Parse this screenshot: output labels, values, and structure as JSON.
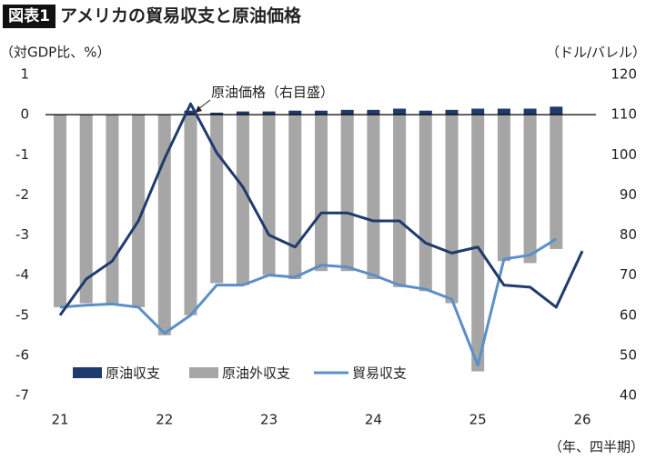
{
  "chart_data": {
    "type": "bar_line",
    "badge": "図表1",
    "title": "アメリカの貿易収支と原油価格",
    "y_label": "（対GDP比、%）",
    "y2_label": "（ドル/バレル）",
    "x_label": "（年、四半期）",
    "annotation": "原油価格（右目盛）",
    "categories": [
      "21",
      null,
      null,
      null,
      "22",
      null,
      null,
      null,
      "23",
      null,
      null,
      null,
      "24",
      null,
      null,
      null,
      "25",
      null,
      null,
      null,
      "26"
    ],
    "ylim": [
      -7,
      1
    ],
    "yticks": [
      1,
      0,
      -1,
      -2,
      -3,
      -4,
      -5,
      -6,
      -7
    ],
    "y2lim": [
      40,
      120
    ],
    "y2ticks": [
      120,
      110,
      100,
      90,
      80,
      70,
      60,
      50,
      40
    ],
    "series": [
      {
        "name": "原油収支",
        "kind": "bar",
        "color": "#1f3b6e",
        "values": [
          -0.02,
          0,
          -0.05,
          0,
          0,
          0.1,
          0.05,
          0.08,
          0.08,
          0.1,
          0.1,
          0.12,
          0.12,
          0.15,
          0.1,
          0.12,
          0.15,
          0.15,
          0.15,
          0.2,
          null
        ]
      },
      {
        "name": "原油外収支",
        "kind": "bar",
        "color": "#a6a6a6",
        "values": [
          -4.8,
          -4.7,
          -4.7,
          -4.8,
          -5.5,
          -5.0,
          -4.2,
          -4.25,
          -4.0,
          -4.1,
          -3.9,
          -3.9,
          -4.1,
          -4.3,
          -4.4,
          -4.7,
          -6.4,
          -3.65,
          -3.7,
          -3.35,
          null
        ]
      },
      {
        "name": "貿易収支",
        "kind": "line",
        "color": "#5b8fc7",
        "values": [
          -4.8,
          -4.75,
          -4.72,
          -4.8,
          -5.45,
          -5.0,
          -4.25,
          -4.25,
          -4.0,
          -4.05,
          -3.75,
          -3.8,
          -4.0,
          -4.25,
          -4.35,
          -4.6,
          -6.25,
          -3.6,
          -3.5,
          -3.1,
          null
        ]
      },
      {
        "name": "原油価格",
        "kind": "line",
        "axis": "y2",
        "color": "#1f3b6e",
        "values": [
          60,
          69,
          73.5,
          83.5,
          99,
          112.7,
          100.5,
          92,
          80,
          77,
          85.5,
          85.5,
          83.5,
          83.5,
          78,
          75.5,
          77,
          67.5,
          67,
          62,
          76
        ]
      }
    ]
  }
}
